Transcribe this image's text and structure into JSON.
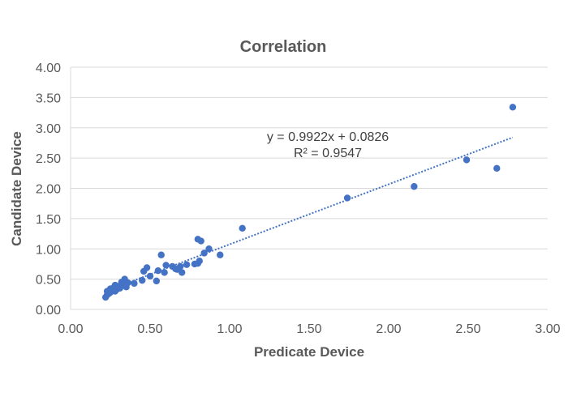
{
  "chart_data": {
    "type": "scatter",
    "title": "Correlation",
    "xlabel": "Predicate Device",
    "ylabel": "Candidate Device",
    "xlim": [
      0,
      3
    ],
    "ylim": [
      0,
      4
    ],
    "x_ticks": [
      "0.00",
      "0.50",
      "1.00",
      "1.50",
      "2.00",
      "2.50",
      "3.00"
    ],
    "y_ticks": [
      "0.00",
      "0.50",
      "1.00",
      "1.50",
      "2.00",
      "2.50",
      "3.00",
      "3.50",
      "4.00"
    ],
    "grid": "horizontal",
    "series": [
      {
        "color": "#4472c4",
        "points": [
          [
            0.22,
            0.2
          ],
          [
            0.23,
            0.24
          ],
          [
            0.23,
            0.3
          ],
          [
            0.24,
            0.26
          ],
          [
            0.25,
            0.28
          ],
          [
            0.25,
            0.34
          ],
          [
            0.26,
            0.31
          ],
          [
            0.27,
            0.36
          ],
          [
            0.28,
            0.3
          ],
          [
            0.28,
            0.4
          ],
          [
            0.29,
            0.33
          ],
          [
            0.3,
            0.38
          ],
          [
            0.31,
            0.35
          ],
          [
            0.32,
            0.45
          ],
          [
            0.33,
            0.41
          ],
          [
            0.34,
            0.5
          ],
          [
            0.35,
            0.37
          ],
          [
            0.36,
            0.44
          ],
          [
            0.4,
            0.43
          ],
          [
            0.45,
            0.48
          ],
          [
            0.46,
            0.63
          ],
          [
            0.48,
            0.69
          ],
          [
            0.5,
            0.55
          ],
          [
            0.54,
            0.47
          ],
          [
            0.55,
            0.64
          ],
          [
            0.57,
            0.9
          ],
          [
            0.59,
            0.61
          ],
          [
            0.6,
            0.73
          ],
          [
            0.64,
            0.71
          ],
          [
            0.66,
            0.67
          ],
          [
            0.67,
            0.66
          ],
          [
            0.69,
            0.71
          ],
          [
            0.7,
            0.61
          ],
          [
            0.73,
            0.74
          ],
          [
            0.78,
            0.75
          ],
          [
            0.8,
            0.76
          ],
          [
            0.8,
            1.16
          ],
          [
            0.81,
            0.8
          ],
          [
            0.82,
            1.13
          ],
          [
            0.84,
            0.93
          ],
          [
            0.87,
            1.0
          ],
          [
            0.94,
            0.9
          ],
          [
            1.08,
            1.34
          ],
          [
            1.74,
            1.84
          ],
          [
            2.16,
            2.03
          ],
          [
            2.49,
            2.47
          ],
          [
            2.68,
            2.33
          ],
          [
            2.78,
            3.34
          ]
        ]
      }
    ],
    "trendline": {
      "slope": 0.9922,
      "intercept": 0.0826,
      "x_range": [
        0.22,
        2.78
      ],
      "style": "dotted",
      "color": "#4472c4",
      "equation_label": "y = 0.9922x + 0.0826",
      "r2_label": "R² = 0.9547"
    }
  }
}
